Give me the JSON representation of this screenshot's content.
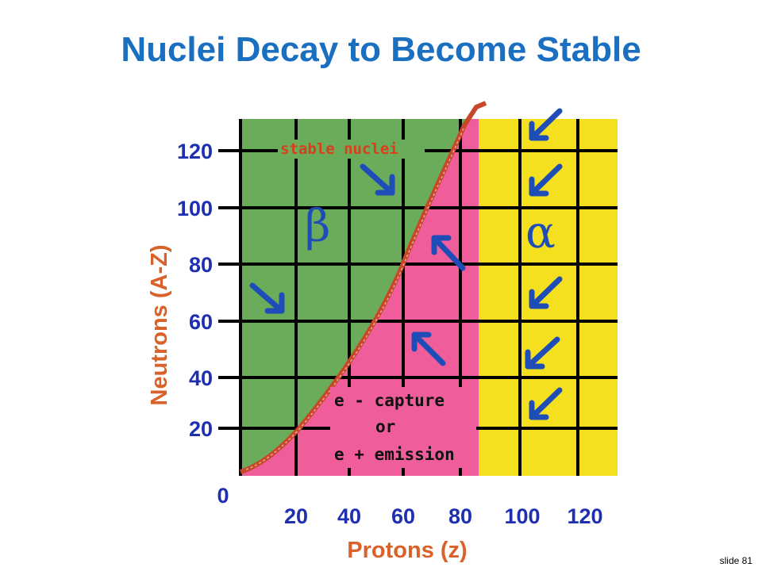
{
  "slide": {
    "title": "Nuclei Decay to Become Stable",
    "number_label": "slide 81"
  },
  "diagram": {
    "x_axis_label": "Protons (z)",
    "y_axis_label": "Neutrons (A-Z)",
    "origin_label": "0",
    "x_ticks": [
      "20",
      "40",
      "60",
      "80",
      "100",
      "120"
    ],
    "y_ticks": [
      "20",
      "40",
      "60",
      "80",
      "100",
      "120"
    ],
    "stable_label": "stable nuclei",
    "beta_symbol": "β",
    "alpha_symbol": "α",
    "capture_lines": [
      "e - capture",
      "or",
      "e + emission"
    ],
    "colors": {
      "green_region": "#6aac5a",
      "pink_region": "#ef5e9b",
      "yellow_region": "#f5e020",
      "grid": "#000000",
      "stability_curve": "#c8462a",
      "arrows": "#1e4db8",
      "ticks": "#1e2fb0",
      "axis_labels": "#d9622b"
    },
    "arrow_icons": [
      "arrow-down-right-icon",
      "arrow-up-left-icon",
      "arrow-down-left-icon"
    ]
  }
}
